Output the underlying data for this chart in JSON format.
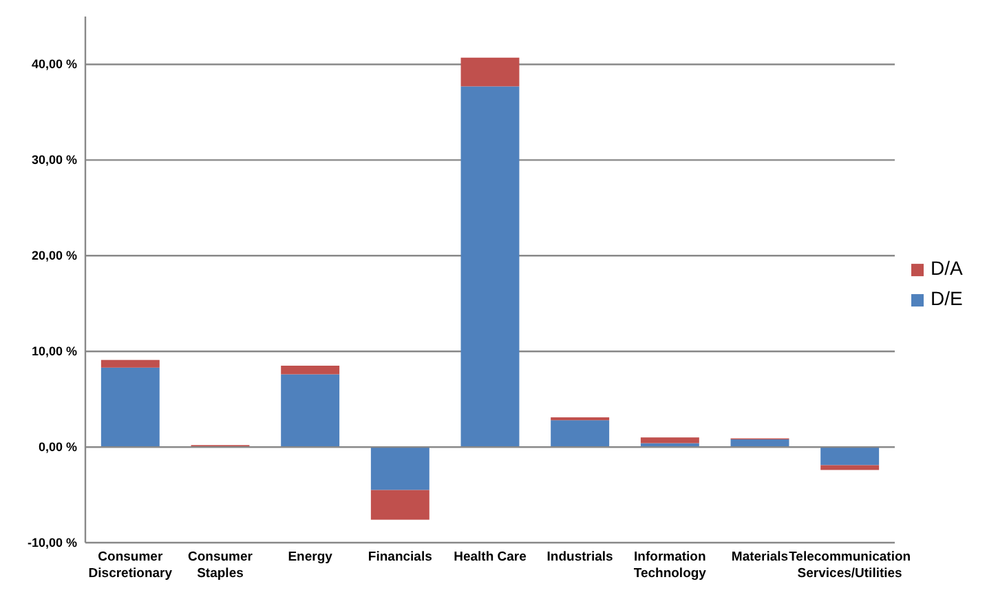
{
  "chart_data": {
    "type": "bar",
    "stacked": true,
    "categories": [
      "Consumer Discretionary",
      "Consumer Staples",
      "Energy",
      "Financials",
      "Health Care",
      "Industrials",
      "Information Technology",
      "Materials",
      "Telecommunication Services/Utilities"
    ],
    "series": [
      {
        "name": "D/E",
        "color": "#4f81bd",
        "values": [
          8.3,
          0,
          7.6,
          -4.5,
          37.7,
          2.8,
          0.4,
          0.8,
          -1.9
        ]
      },
      {
        "name": "D/A",
        "color": "#c0504d",
        "values": [
          0.8,
          0.2,
          0.9,
          -3.1,
          3.0,
          0.3,
          0.6,
          0.1,
          -0.5
        ]
      }
    ],
    "ylim": [
      -10,
      45
    ],
    "yticks": [
      {
        "value": -10,
        "label": "-10,00 %"
      },
      {
        "value": 0,
        "label": "0,00 %"
      },
      {
        "value": 10,
        "label": "10,00 %"
      },
      {
        "value": 20,
        "label": "20,00 %"
      },
      {
        "value": 30,
        "label": "30,00 %"
      },
      {
        "value": 40,
        "label": "40,00 %"
      }
    ],
    "grid": "y",
    "legend": "right"
  }
}
